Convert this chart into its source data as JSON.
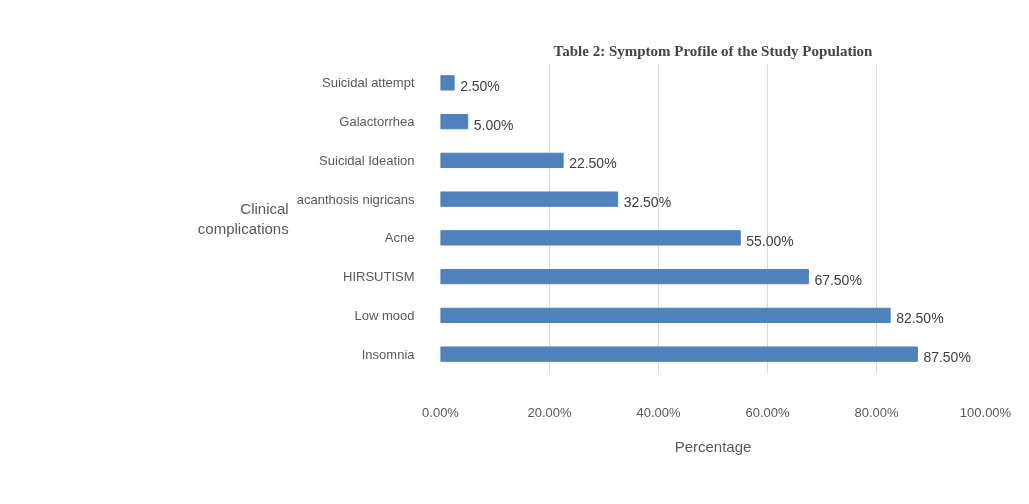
{
  "chart_data": {
    "type": "bar",
    "orientation": "horizontal",
    "title": "Table 2: Symptom Profile of the Study Population",
    "categories": [
      "Suicidal attempt",
      "Galactorrhea",
      "Suicidal Ideation",
      "acanthosis nigricans",
      "Acne",
      "HIRSUTISM",
      "Low mood",
      "Insomnia"
    ],
    "values": [
      2.5,
      5.0,
      22.5,
      32.5,
      55.0,
      67.5,
      82.5,
      87.5
    ],
    "value_labels": [
      "2.50%",
      "5.00%",
      "22.50%",
      "32.50%",
      "55.00%",
      "67.50%",
      "82.50%",
      "87.50%"
    ],
    "color": "#4f81bd",
    "xlim": [
      0,
      100
    ],
    "xticks": [
      {
        "value": 0,
        "label": "0.00%"
      },
      {
        "value": 20,
        "label": "20.00%"
      },
      {
        "value": 40,
        "label": "40.00%"
      },
      {
        "value": 60,
        "label": "60.00%"
      },
      {
        "value": 80,
        "label": "80.00%"
      },
      {
        "value": 100,
        "label": "100.00%"
      }
    ],
    "ylabel": "Clinical complications",
    "xlabel": "Percentage",
    "grid": "x"
  }
}
